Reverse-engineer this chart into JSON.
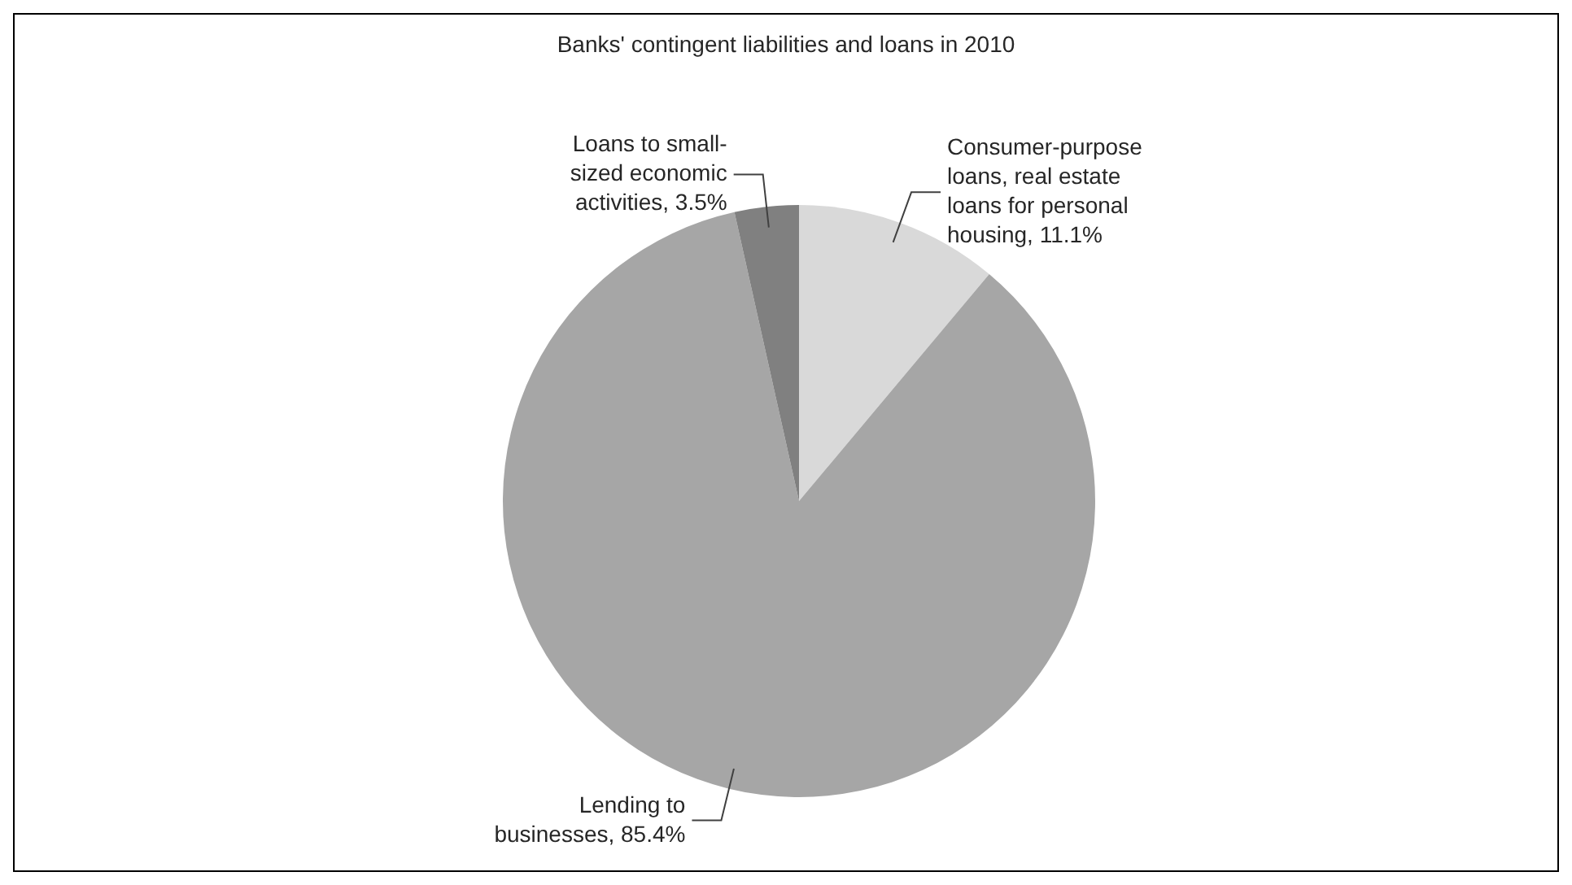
{
  "chart_data": {
    "type": "pie",
    "title": "Banks' contingent liabilities and loans in 2010",
    "categories": [
      "Consumer-purpose loans, real estate loans for personal housing",
      "Lending to businesses",
      "Loans to small-sized economic activities"
    ],
    "values": [
      11.1,
      85.4,
      3.5
    ],
    "value_labels": [
      "11.1%",
      "85.4%",
      "3.5%"
    ],
    "colors": [
      "#d9d9d9",
      "#a6a6a6",
      "#808080"
    ]
  }
}
